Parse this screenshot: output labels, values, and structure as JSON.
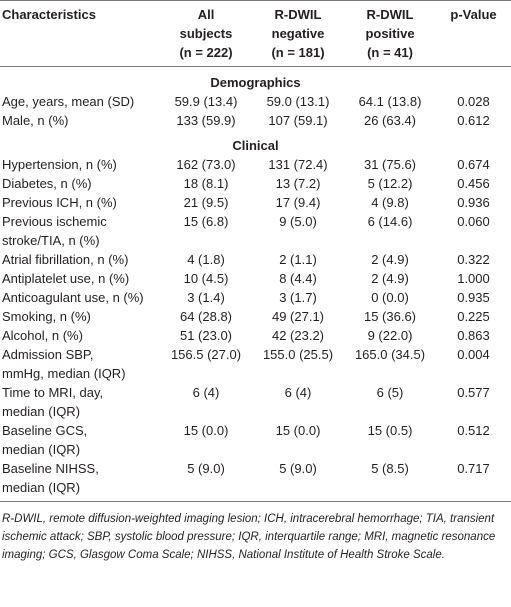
{
  "table": {
    "columns": [
      [
        "Characteristics"
      ],
      [
        "All",
        "subjects",
        "(n = 222)"
      ],
      [
        "R-DWIL",
        "negative",
        "(n = 181)"
      ],
      [
        "R-DWIL",
        "positive",
        "(n = 41)"
      ],
      [
        "p-Value"
      ]
    ],
    "rows": [
      {
        "section": "Demographics"
      },
      {
        "label": [
          "Age, years, mean (SD)"
        ],
        "cells": [
          "59.9 (13.4)",
          "59.0 (13.1)",
          "64.1 (13.8)",
          "0.028"
        ]
      },
      {
        "label": [
          "Male, n (%)"
        ],
        "cells": [
          "133 (59.9)",
          "107 (59.1)",
          "26 (63.4)",
          "0.612"
        ]
      },
      {
        "section": "Clinical"
      },
      {
        "label": [
          "Hypertension, n (%)"
        ],
        "cells": [
          "162 (73.0)",
          "131 (72.4)",
          "31 (75.6)",
          "0.674"
        ]
      },
      {
        "label": [
          "Diabetes, n (%)"
        ],
        "cells": [
          "18 (8.1)",
          "13 (7.2)",
          "5 (12.2)",
          "0.456"
        ]
      },
      {
        "label": [
          "Previous ICH, n (%)"
        ],
        "cells": [
          "21 (9.5)",
          "17 (9.4)",
          "4 (9.8)",
          "0.936"
        ]
      },
      {
        "label": [
          "Previous ischemic",
          "stroke/TIA, n (%)"
        ],
        "cells": [
          "15 (6.8)",
          "9 (5.0)",
          "6 (14.6)",
          "0.060"
        ]
      },
      {
        "label": [
          "Atrial fibrillation, n (%)"
        ],
        "cells": [
          "4 (1.8)",
          "2 (1.1)",
          "2 (4.9)",
          "0.322"
        ]
      },
      {
        "label": [
          "Antiplatelet use, n (%)"
        ],
        "cells": [
          "10 (4.5)",
          "8 (4.4)",
          "2 (4.9)",
          "1.000"
        ]
      },
      {
        "label": [
          "Anticoagulant use, n (%)"
        ],
        "cells": [
          "3 (1.4)",
          "3 (1.7)",
          "0 (0.0)",
          "0.935"
        ]
      },
      {
        "label": [
          "Smoking, n (%)"
        ],
        "cells": [
          "64 (28.8)",
          "49 (27.1)",
          "15 (36.6)",
          "0.225"
        ]
      },
      {
        "label": [
          "Alcohol, n (%)"
        ],
        "cells": [
          "51 (23.0)",
          "42 (23.2)",
          "9 (22.0)",
          "0.863"
        ]
      },
      {
        "label": [
          "Admission SBP,",
          "mmHg, median (IQR)"
        ],
        "cells": [
          "156.5 (27.0)",
          "155.0 (25.5)",
          "165.0 (34.5)",
          "0.004"
        ]
      },
      {
        "label": [
          "Time to MRI, day,",
          "median (IQR)"
        ],
        "cells": [
          "6 (4)",
          "6 (4)",
          "6 (5)",
          "0.577"
        ]
      },
      {
        "label": [
          "Baseline GCS,",
          "median (IQR)"
        ],
        "cells": [
          "15 (0.0)",
          "15 (0.0)",
          "15 (0.5)",
          "0.512"
        ]
      },
      {
        "label": [
          "Baseline NIHSS,",
          "median (IQR)"
        ],
        "cells": [
          "5 (9.0)",
          "5 (9.0)",
          "5 (8.5)",
          "0.717"
        ]
      }
    ],
    "footnote": "R-DWIL, remote diffusion-weighted imaging lesion; ICH, intracerebral hemorrhage; TIA, transient ischemic attack; SBP, systolic blood pressure; IQR, interquartile range; MRI, magnetic resonance imaging; GCS, Glasgow Coma Scale; NIHSS, National Institute of Health Stroke Scale."
  }
}
